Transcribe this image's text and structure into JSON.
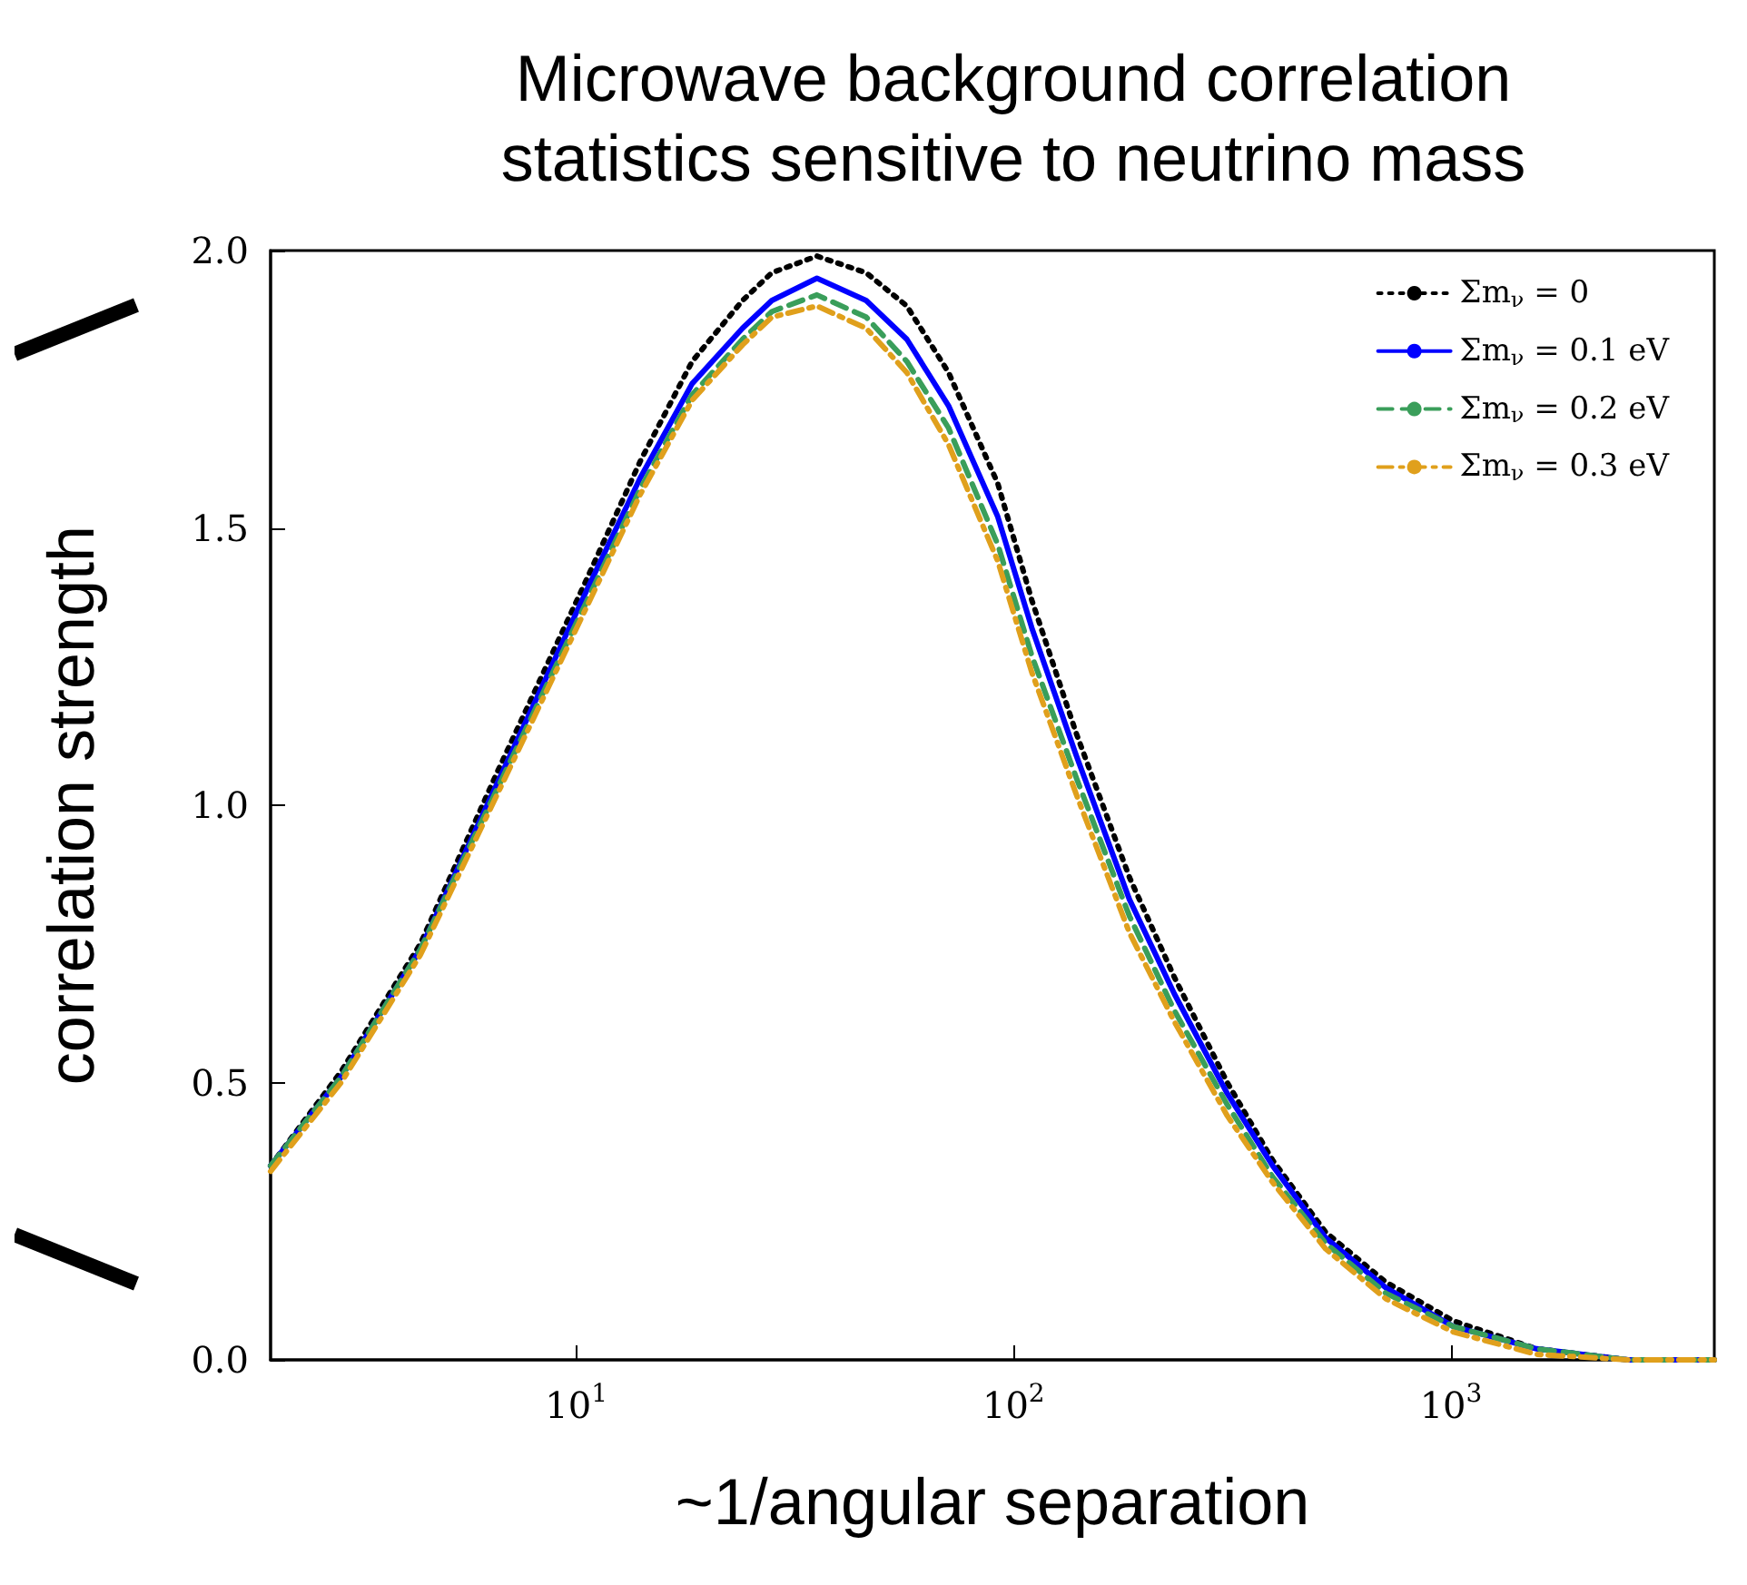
{
  "chart_data": {
    "type": "line",
    "title": "Microwave background correlation\nstatistics sensitive to neutrino mass",
    "xlabel": "~1/angular separation",
    "ylabel": "correlation strength",
    "log": "x",
    "xlim": [
      2,
      4000
    ],
    "ylim": [
      0,
      2
    ],
    "xticks": [
      {
        "value": 10,
        "label": "10$^{1}$"
      },
      {
        "value": 100,
        "label": "10$^{2}$"
      },
      {
        "value": 1000,
        "label": "10$^{3}$"
      }
    ],
    "yticks": [
      {
        "value": 0,
        "label": "0.0"
      },
      {
        "value": 0.5,
        "label": "0.5"
      },
      {
        "value": 1,
        "label": "1.0"
      },
      {
        "value": 1.5,
        "label": "1.5"
      },
      {
        "value": 2,
        "label": "2.0"
      }
    ],
    "x": [
      2,
      2.9,
      4.4,
      6.6,
      10.6,
      14,
      18.4,
      24,
      28,
      35.5,
      46,
      57,
      71,
      92,
      110,
      139,
      184,
      233,
      308,
      391,
      517,
      710,
      1014,
      1570,
      2536,
      4000
    ],
    "legend": "top right",
    "grid": false,
    "marker": "none",
    "series": [
      {
        "name": "Σm$_{ν}$ = 0",
        "color": "#000000",
        "line_style": "dotted",
        "values": [
          0.35,
          0.52,
          0.75,
          1.06,
          1.41,
          1.62,
          1.8,
          1.91,
          1.96,
          1.99,
          1.96,
          1.9,
          1.78,
          1.58,
          1.37,
          1.13,
          0.87,
          0.69,
          0.5,
          0.36,
          0.23,
          0.14,
          0.07,
          0.02,
          0.0,
          0.0
        ]
      },
      {
        "name": "Σm$_{ν}$ = 0.1 eV",
        "color": "#0000ff",
        "line_style": "solid",
        "values": [
          0.35,
          0.51,
          0.74,
          1.04,
          1.39,
          1.59,
          1.76,
          1.86,
          1.91,
          1.95,
          1.91,
          1.84,
          1.72,
          1.52,
          1.32,
          1.09,
          0.83,
          0.66,
          0.48,
          0.35,
          0.22,
          0.13,
          0.06,
          0.02,
          0.0,
          0.0
        ]
      },
      {
        "name": "Σm$_{ν}$ = 0.2 eV",
        "color": "#3a9e5a",
        "line_style": "dashed",
        "values": [
          0.35,
          0.51,
          0.74,
          1.03,
          1.37,
          1.57,
          1.74,
          1.84,
          1.89,
          1.92,
          1.88,
          1.8,
          1.68,
          1.47,
          1.27,
          1.05,
          0.8,
          0.63,
          0.46,
          0.33,
          0.21,
          0.12,
          0.06,
          0.02,
          0.0,
          0.0
        ]
      },
      {
        "name": "Σm$_{ν}$ = 0.3 eV",
        "color": "#e0a01c",
        "line_style": "dashdot",
        "values": [
          0.34,
          0.5,
          0.73,
          1.02,
          1.36,
          1.56,
          1.73,
          1.83,
          1.88,
          1.9,
          1.86,
          1.78,
          1.65,
          1.44,
          1.24,
          1.02,
          0.77,
          0.61,
          0.44,
          0.32,
          0.2,
          0.11,
          0.05,
          0.01,
          0.0,
          0.0
        ]
      }
    ]
  }
}
